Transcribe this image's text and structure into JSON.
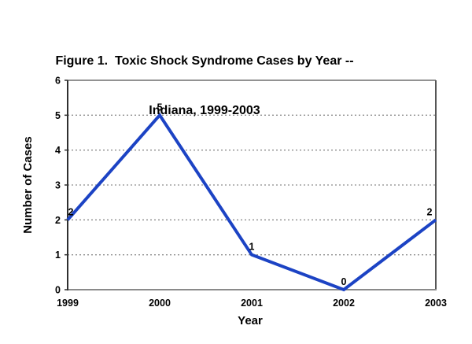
{
  "chart_data": {
    "type": "line",
    "title": "Figure 1.  Toxic Shock Syndrome Cases by Year -- Indiana, 1999-2003",
    "title_lines": [
      "Figure 1.  Toxic Shock Syndrome Cases by Year --",
      "Indiana, 1999-2003"
    ],
    "categories": [
      "1999",
      "2000",
      "2001",
      "2002",
      "2003"
    ],
    "series": [
      {
        "name": "Toxic Shock Syndrome Cases",
        "values": [
          2,
          5,
          1,
          0,
          2
        ]
      }
    ],
    "data_labels": [
      "2",
      "5",
      "1",
      "0",
      "2"
    ],
    "xlabel": "Year",
    "ylabel": "Number of Cases",
    "ylim": [
      0,
      6
    ],
    "yticks": [
      0,
      1,
      2,
      3,
      4,
      5,
      6
    ],
    "grid": "horizontal dotted lines at each integer",
    "legend": "none",
    "colors": {
      "line": "#1c43c4",
      "grid": "#8c8c8c",
      "border_top": "#6e6e6e",
      "border_right": "#565656",
      "axis_left": "#2f2f2f",
      "axis_bottom": "#8a8a8a",
      "text": "#000000",
      "background": "#ffffff"
    }
  }
}
